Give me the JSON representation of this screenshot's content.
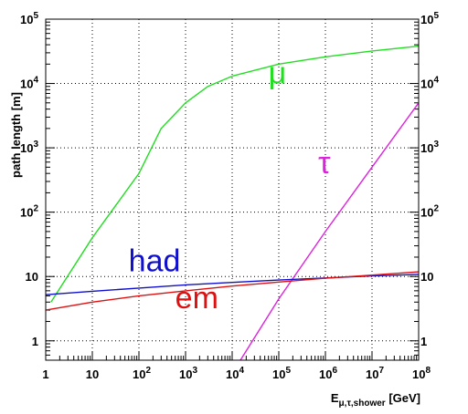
{
  "chart_data": {
    "type": "line",
    "title": "",
    "xlabel": {
      "base": "E",
      "sub": "μ,τ,shower",
      "unit": " [GeV]"
    },
    "ylabel": "path length [m]",
    "x_scale": "log",
    "y_scale": "log",
    "xlim": [
      1,
      100000000
    ],
    "ylim": [
      0.5,
      100000
    ],
    "grid": true,
    "x_ticks": [
      {
        "value": 1,
        "label": "1"
      },
      {
        "value": 10,
        "label": "10"
      },
      {
        "value": 100,
        "label": "10",
        "exp": "2"
      },
      {
        "value": 1000,
        "label": "10",
        "exp": "3"
      },
      {
        "value": 10000,
        "label": "10",
        "exp": "4"
      },
      {
        "value": 100000,
        "label": "10",
        "exp": "5"
      },
      {
        "value": 1000000,
        "label": "10",
        "exp": "6"
      },
      {
        "value": 10000000,
        "label": "10",
        "exp": "7"
      },
      {
        "value": 100000000,
        "label": "10",
        "exp": "8"
      }
    ],
    "y_ticks": [
      {
        "value": 1,
        "label": "1"
      },
      {
        "value": 10,
        "label": "10"
      },
      {
        "value": 100,
        "label": "10",
        "exp": "2"
      },
      {
        "value": 1000,
        "label": "10",
        "exp": "3"
      },
      {
        "value": 10000,
        "label": "10",
        "exp": "4"
      },
      {
        "value": 100000,
        "label": "10",
        "exp": "5"
      }
    ],
    "series": [
      {
        "name": "μ",
        "color": "#22dd22",
        "label_at": [
          60000,
          10000
        ],
        "points": [
          [
            1.3,
            4
          ],
          [
            10,
            40
          ],
          [
            100,
            400
          ],
          [
            300,
            2000
          ],
          [
            1000,
            5000
          ],
          [
            3000,
            9000
          ],
          [
            10000,
            13000
          ],
          [
            100000,
            20000
          ],
          [
            1000000,
            26000
          ],
          [
            10000000,
            32000
          ],
          [
            100000000,
            38000
          ]
        ]
      },
      {
        "name": "τ",
        "color": "#dd22dd",
        "label_at": [
          700000,
          400
        ],
        "points": [
          [
            15000,
            0.5
          ],
          [
            100000,
            4.5
          ],
          [
            1000000,
            50
          ],
          [
            10000000,
            500
          ],
          [
            100000000,
            5000
          ]
        ]
      },
      {
        "name": "had",
        "color": "#1010cc",
        "label_at": [
          60,
          12
        ],
        "points": [
          [
            1,
            5.2
          ],
          [
            10,
            5.9
          ],
          [
            100,
            6.6
          ],
          [
            1000,
            7.4
          ],
          [
            10000,
            8.1
          ],
          [
            100000,
            8.8
          ],
          [
            1000000,
            9.5
          ],
          [
            10000000,
            10.2
          ],
          [
            100000000,
            10.8
          ]
        ]
      },
      {
        "name": "em",
        "color": "#dd1111",
        "label_at": [
          600,
          3.2
        ],
        "points": [
          [
            1,
            3.0
          ],
          [
            10,
            4.0
          ],
          [
            100,
            5.0
          ],
          [
            1000,
            6.0
          ],
          [
            10000,
            7.1
          ],
          [
            100000,
            8.2
          ],
          [
            1000000,
            9.4
          ],
          [
            10000000,
            10.5
          ],
          [
            100000000,
            11.8
          ]
        ]
      }
    ]
  }
}
